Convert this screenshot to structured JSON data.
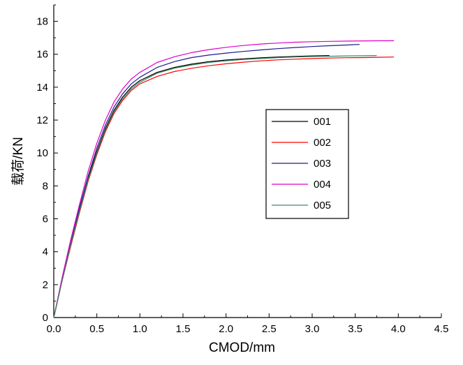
{
  "chart_data": {
    "type": "line",
    "title": "",
    "xlabel": "CMOD/mm",
    "ylabel": "载荷/KN",
    "xlim": [
      0.0,
      4.5
    ],
    "ylim": [
      0,
      19
    ],
    "xticks": [
      "0.0",
      "0.5",
      "1.0",
      "1.5",
      "2.0",
      "2.5",
      "3.0",
      "3.5",
      "4.0",
      "4.5"
    ],
    "yticks": [
      "0",
      "2",
      "4",
      "6",
      "8",
      "10",
      "12",
      "14",
      "16",
      "18"
    ],
    "xtick_values": [
      0.0,
      0.5,
      1.0,
      1.5,
      2.0,
      2.5,
      3.0,
      3.5,
      4.0,
      4.5
    ],
    "ytick_values": [
      0,
      2,
      4,
      6,
      8,
      10,
      12,
      14,
      16,
      18
    ],
    "grid": false,
    "legend_position": "center-right",
    "series": [
      {
        "name": "001",
        "color": "#000000",
        "x": [
          0.0,
          0.1,
          0.2,
          0.3,
          0.4,
          0.5,
          0.6,
          0.7,
          0.8,
          0.9,
          1.0,
          1.2,
          1.4,
          1.6,
          1.8,
          2.0,
          2.2,
          2.4,
          2.6,
          2.8,
          3.0,
          3.2
        ],
        "y": [
          0.0,
          2.3,
          4.5,
          6.6,
          8.5,
          10.1,
          11.5,
          12.6,
          13.4,
          14.0,
          14.4,
          14.9,
          15.2,
          15.4,
          15.55,
          15.65,
          15.72,
          15.78,
          15.83,
          15.87,
          15.9,
          15.92
        ]
      },
      {
        "name": "002",
        "color": "#ff0000",
        "x": [
          0.0,
          0.1,
          0.2,
          0.3,
          0.4,
          0.5,
          0.6,
          0.7,
          0.8,
          0.9,
          1.0,
          1.2,
          1.4,
          1.6,
          1.8,
          2.0,
          2.2,
          2.4,
          2.6,
          2.8,
          3.0,
          3.2,
          3.4,
          3.6,
          3.8,
          3.95
        ],
        "y": [
          0.0,
          2.3,
          4.4,
          6.4,
          8.3,
          9.9,
          11.3,
          12.4,
          13.2,
          13.8,
          14.2,
          14.65,
          14.95,
          15.15,
          15.3,
          15.42,
          15.52,
          15.6,
          15.66,
          15.7,
          15.74,
          15.77,
          15.79,
          15.8,
          15.82,
          15.83
        ]
      },
      {
        "name": "003",
        "color": "#1c1c8c",
        "x": [
          0.0,
          0.1,
          0.2,
          0.3,
          0.4,
          0.5,
          0.6,
          0.7,
          0.8,
          0.9,
          1.0,
          1.2,
          1.4,
          1.6,
          1.8,
          2.0,
          2.2,
          2.4,
          2.6,
          2.8,
          3.0,
          3.2,
          3.4,
          3.55
        ],
        "y": [
          0.0,
          2.4,
          4.6,
          6.7,
          8.6,
          10.3,
          11.7,
          12.8,
          13.6,
          14.2,
          14.6,
          15.2,
          15.55,
          15.8,
          15.95,
          16.07,
          16.17,
          16.26,
          16.34,
          16.41,
          16.47,
          16.52,
          16.56,
          16.6
        ]
      },
      {
        "name": "004",
        "color": "#e000c8",
        "x": [
          0.0,
          0.1,
          0.2,
          0.3,
          0.4,
          0.5,
          0.6,
          0.7,
          0.8,
          0.9,
          1.0,
          1.2,
          1.4,
          1.6,
          1.8,
          2.0,
          2.2,
          2.4,
          2.6,
          2.8,
          3.0,
          3.2,
          3.4,
          3.6,
          3.8,
          3.95
        ],
        "y": [
          0.0,
          2.5,
          4.8,
          6.9,
          8.9,
          10.6,
          12.0,
          13.1,
          13.9,
          14.5,
          14.9,
          15.5,
          15.85,
          16.1,
          16.28,
          16.42,
          16.53,
          16.62,
          16.68,
          16.73,
          16.76,
          16.78,
          16.8,
          16.81,
          16.82,
          16.82
        ]
      },
      {
        "name": "005",
        "color": "#3a8a6a",
        "x": [
          0.0,
          0.1,
          0.2,
          0.3,
          0.4,
          0.5,
          0.6,
          0.7,
          0.8,
          0.9,
          1.0,
          1.2,
          1.4,
          1.6,
          1.8,
          2.0,
          2.2,
          2.4,
          2.6,
          2.8,
          3.0,
          3.2,
          3.4,
          3.6,
          3.75
        ],
        "y": [
          0.0,
          2.3,
          4.5,
          6.5,
          8.4,
          10.0,
          11.4,
          12.5,
          13.3,
          13.9,
          14.3,
          14.85,
          15.15,
          15.35,
          15.5,
          15.6,
          15.68,
          15.74,
          15.79,
          15.83,
          15.86,
          15.88,
          15.9,
          15.91,
          15.92
        ]
      }
    ]
  }
}
